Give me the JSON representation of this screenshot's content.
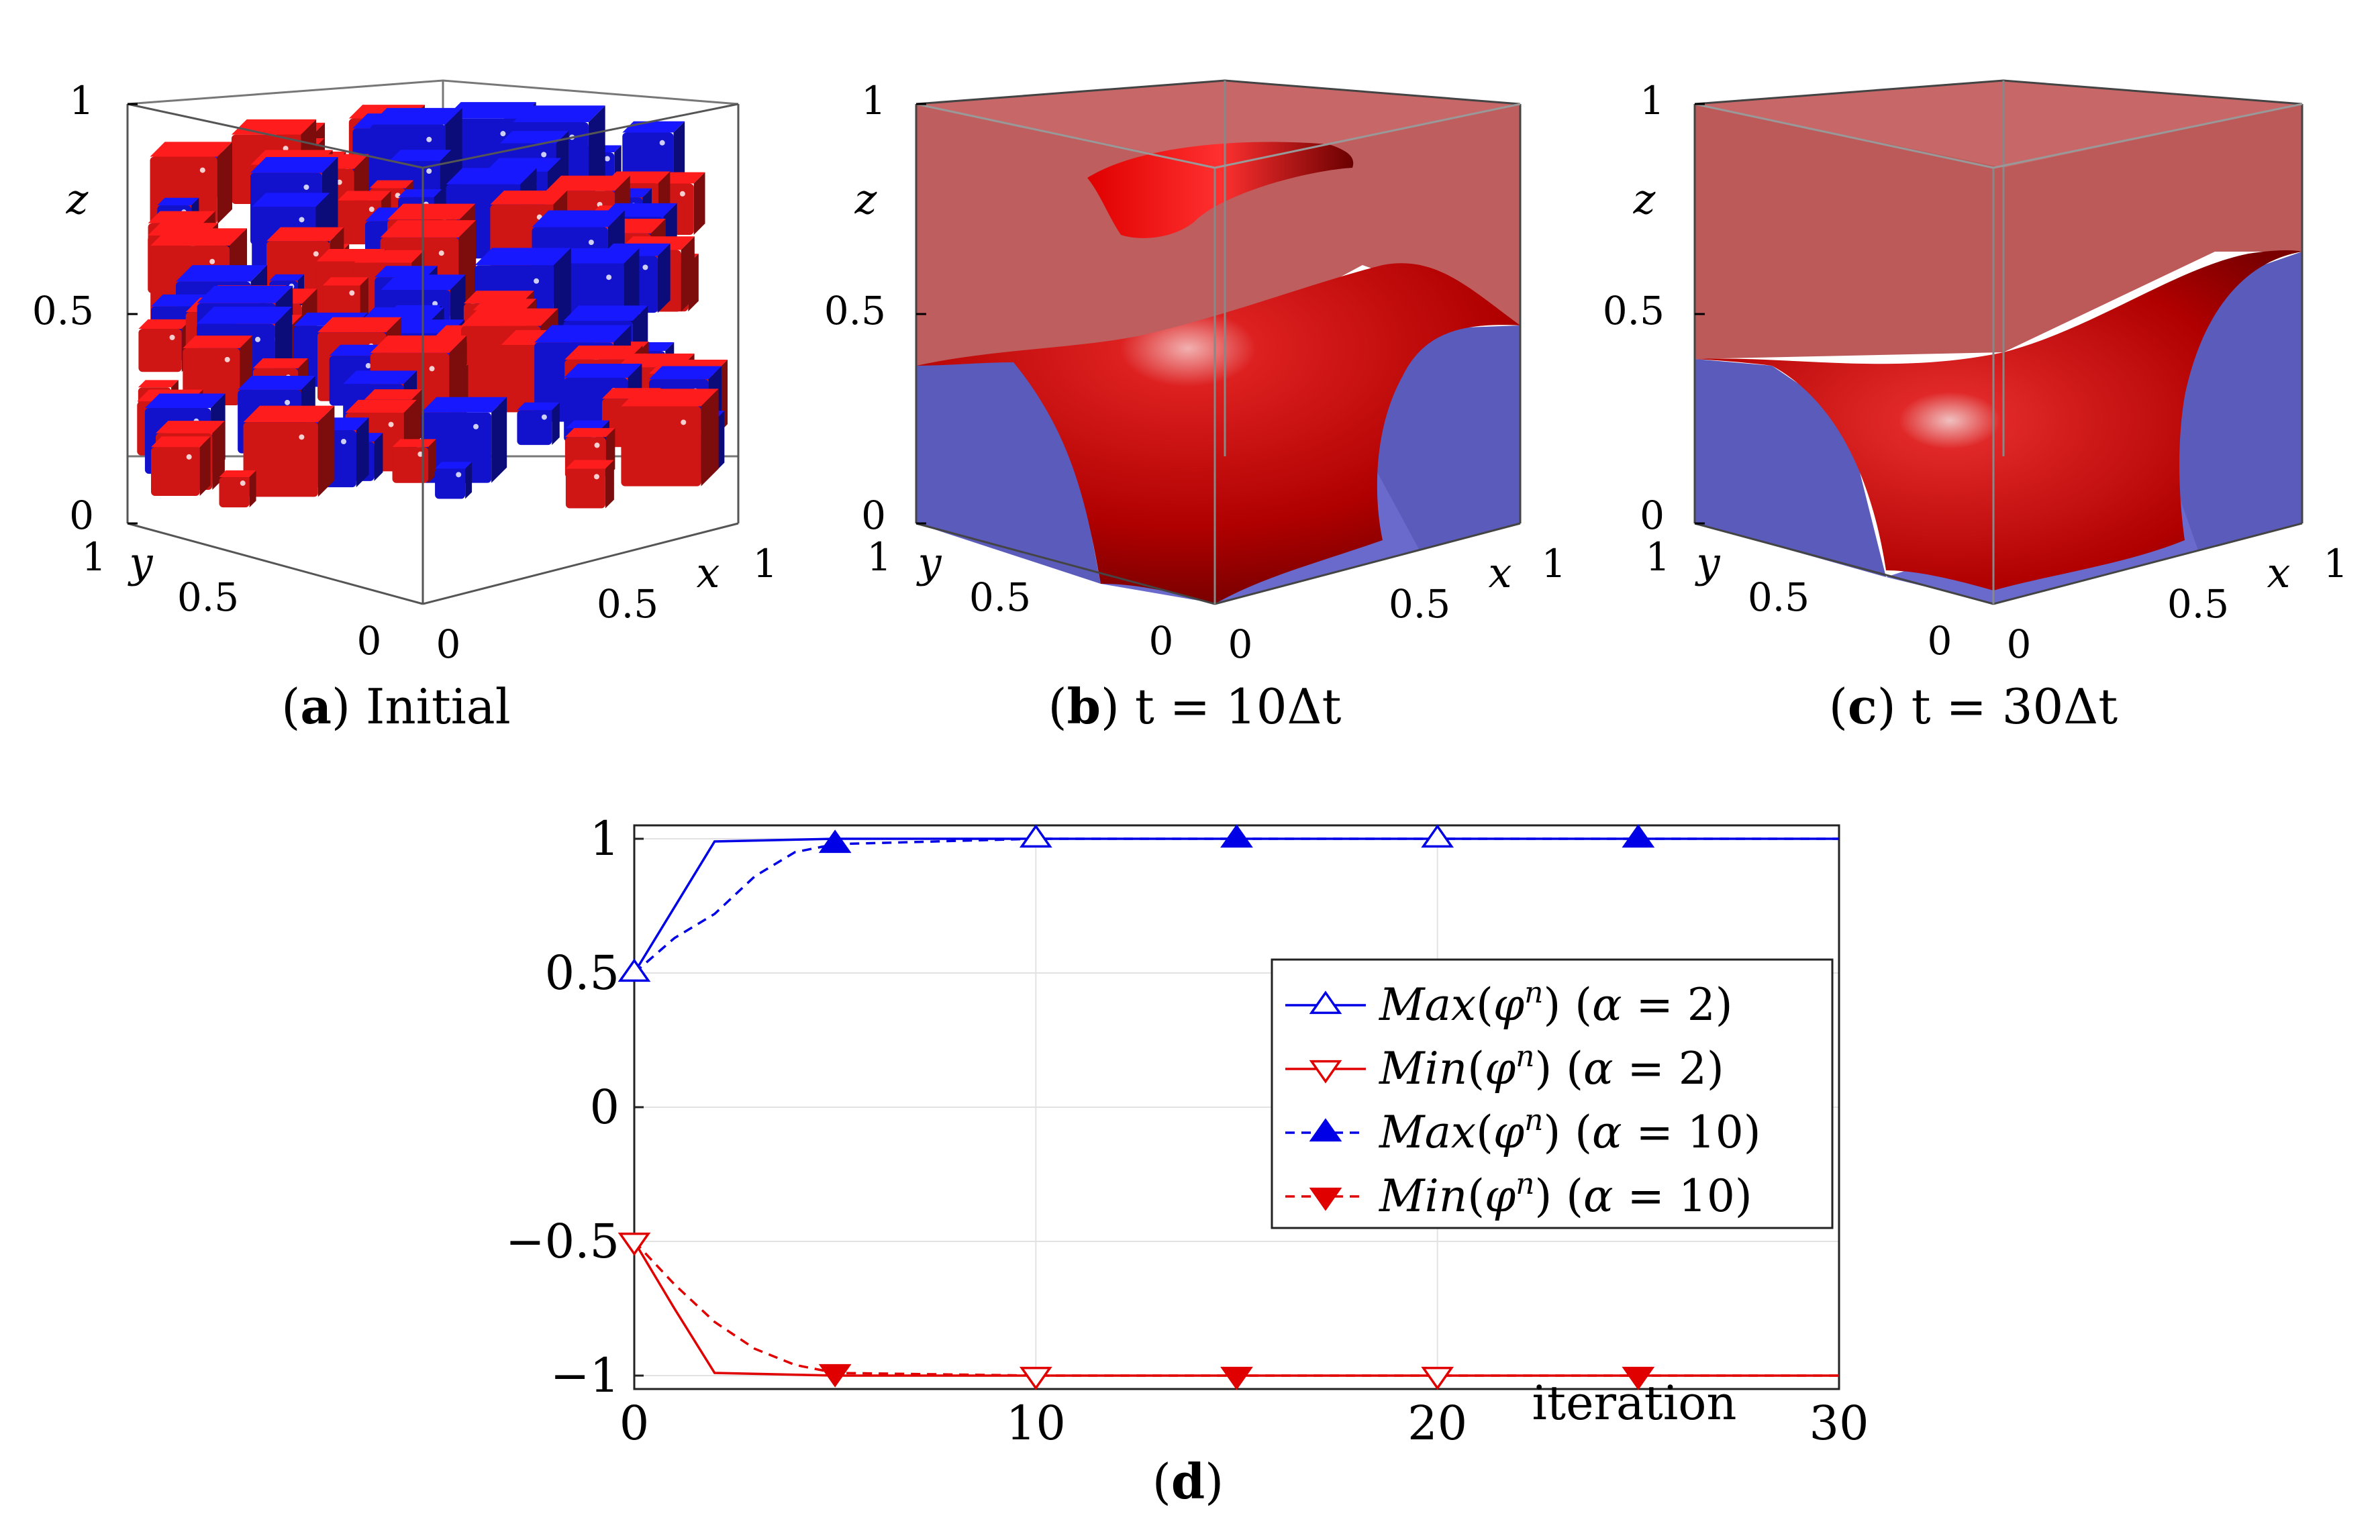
{
  "panels": {
    "a": {
      "caption_letter": "a",
      "caption_text": "Initial"
    },
    "b": {
      "caption_letter": "b",
      "caption_text": "t = 10Δt"
    },
    "c": {
      "caption_letter": "c",
      "caption_text": "t = 30Δt"
    },
    "d": {
      "caption_letter": "d"
    }
  },
  "cube_axes": {
    "z_label": "z",
    "y_label": "y",
    "x_label": "x",
    "z_ticks": [
      "0",
      "0.5",
      "1"
    ],
    "y_ticks": [
      "0",
      "0.5",
      "1"
    ],
    "x_ticks": [
      "0",
      "0.5",
      "1"
    ]
  },
  "colors": {
    "red": "#e00000",
    "blue": "#0000e6",
    "cube_red": "#d01515",
    "cube_blue": "#1212cc"
  },
  "chart_data": {
    "type": "line",
    "title": "",
    "xlabel": "iteration",
    "ylabel": "",
    "xlim": [
      0,
      30
    ],
    "ylim": [
      -1.05,
      1.05
    ],
    "xticks": [
      0,
      10,
      20,
      30
    ],
    "xtick_labels": [
      "0",
      "10",
      "20",
      "30"
    ],
    "yticks": [
      -1,
      -0.5,
      0,
      0.5,
      1
    ],
    "ytick_labels": [
      "−1",
      "−0.5",
      "0",
      "0.5",
      "1"
    ],
    "grid": true,
    "legend_position": "center-right",
    "series": [
      {
        "name": "Max(φⁿ) (α = 2)",
        "label_func": "Max",
        "alpha": "2",
        "color": "#0000e6",
        "line": "solid",
        "marker": "triangle-up-open",
        "x": [
          0,
          2,
          5,
          10,
          15,
          20,
          25,
          30
        ],
        "y": [
          0.5,
          0.99,
          1.0,
          1.0,
          1.0,
          1.0,
          1.0,
          1.0
        ],
        "marker_x": [
          0,
          10,
          20
        ]
      },
      {
        "name": "Min(φⁿ) (α = 2)",
        "label_func": "Min",
        "alpha": "2",
        "color": "#e00000",
        "line": "solid",
        "marker": "triangle-down-open",
        "x": [
          0,
          1,
          2,
          5,
          10,
          15,
          20,
          25,
          30
        ],
        "y": [
          -0.5,
          -0.75,
          -0.99,
          -1.0,
          -1.0,
          -1.0,
          -1.0,
          -1.0,
          -1.0
        ],
        "marker_x": [
          0,
          10,
          20
        ]
      },
      {
        "name": "Max(φⁿ) (α = 10)",
        "label_func": "Max",
        "alpha": "10",
        "color": "#0000e6",
        "line": "dashed",
        "marker": "triangle-up-filled",
        "x": [
          0,
          1,
          2,
          3,
          4,
          5,
          10,
          15,
          20,
          25,
          30
        ],
        "y": [
          0.5,
          0.63,
          0.72,
          0.86,
          0.95,
          0.98,
          1.0,
          1.0,
          1.0,
          1.0,
          1.0
        ],
        "marker_x": [
          5,
          15,
          25
        ]
      },
      {
        "name": "Min(φⁿ) (α = 10)",
        "label_func": "Min",
        "alpha": "10",
        "color": "#e00000",
        "line": "dashed",
        "marker": "triangle-down-filled",
        "x": [
          0,
          1,
          2,
          3,
          4,
          5,
          10,
          15,
          20,
          25,
          30
        ],
        "y": [
          -0.5,
          -0.66,
          -0.8,
          -0.9,
          -0.96,
          -0.99,
          -1.0,
          -1.0,
          -1.0,
          -1.0,
          -1.0
        ],
        "marker_x": [
          5,
          15,
          25
        ]
      }
    ]
  }
}
